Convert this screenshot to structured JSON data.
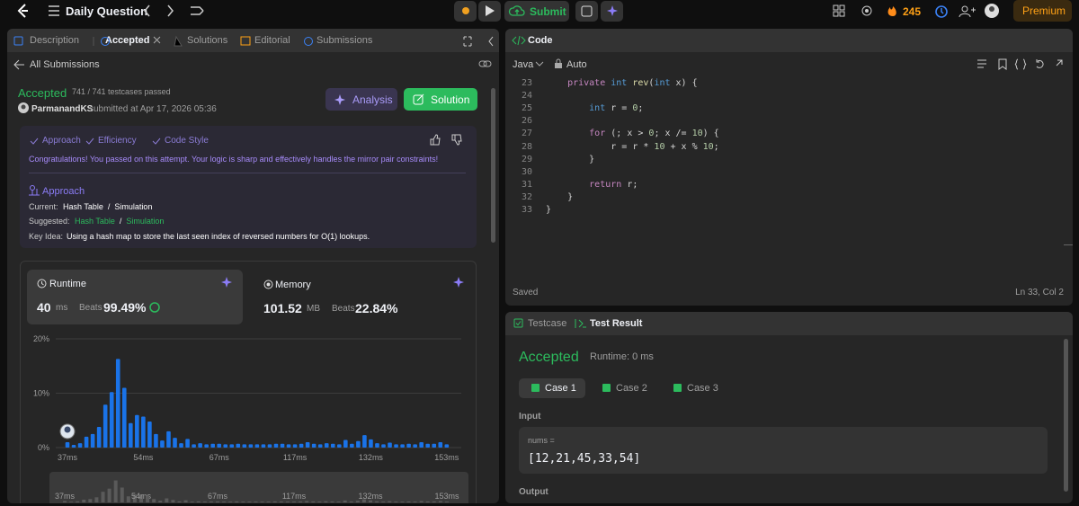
{
  "topbar": {
    "title": "Daily Question",
    "submit": "Submit",
    "streak": "245",
    "premium": "Premium"
  },
  "left_tabs": [
    "Description",
    "Accepted",
    "Solutions",
    "Editorial",
    "Submissions"
  ],
  "back_link": "All Submissions",
  "result": {
    "status": "Accepted",
    "cases": "741 / 741 testcases passed",
    "user": "ParmanandKS",
    "submitted": "submitted at Apr 17, 2026 05:36",
    "analysis": "Analysis",
    "solution": "Solution"
  },
  "feedback": {
    "tags": [
      "Approach",
      "Efficiency",
      "Code Style"
    ],
    "message": "Congratulations! You passed on this attempt. Your logic is sharp and effectively handles the mirror pair constraints!",
    "approach_title": "Approach",
    "separator": "/",
    "current_label": "Current:",
    "current": [
      "Hash Table",
      "Simulation"
    ],
    "suggested_label": "Suggested:",
    "suggested": [
      "Hash Table",
      "Simulation"
    ],
    "key_idea_label": "Key Idea:",
    "key_idea": "Using a hash map to store the last seen index of reversed numbers for O(1) lookups."
  },
  "runtime": {
    "label": "Runtime",
    "value": "40",
    "unit": "ms",
    "beats_label": "Beats",
    "beats": "99.49%"
  },
  "memory": {
    "label": "Memory",
    "value": "101.52",
    "unit": "MB",
    "beats_label": "Beats",
    "beats": "22.84%"
  },
  "runtime_chart": {
    "type": "bar",
    "color": "#1a73e8",
    "overview_color": "#5a5a5a",
    "grid": true,
    "ylim": [
      0,
      20
    ],
    "yticks": [
      {
        "value": 0,
        "label": "0%"
      },
      {
        "value": 10,
        "label": "10%"
      },
      {
        "value": 20,
        "label": "20%"
      }
    ],
    "categories": [
      "37ms",
      null,
      null,
      null,
      null,
      null,
      null,
      null,
      null,
      null,
      null,
      null,
      "54ms",
      null,
      null,
      null,
      null,
      null,
      null,
      null,
      null,
      null,
      null,
      null,
      "67ms",
      null,
      null,
      null,
      null,
      null,
      null,
      null,
      null,
      null,
      null,
      null,
      "117ms",
      null,
      null,
      null,
      null,
      null,
      null,
      null,
      null,
      null,
      null,
      null,
      "132ms",
      null,
      null,
      null,
      null,
      null,
      null,
      null,
      null,
      null,
      null,
      null,
      "153ms"
    ],
    "values": [
      1.0,
      0.5,
      0.8,
      2.0,
      2.5,
      3.8,
      7.9,
      10.2,
      16.3,
      11.0,
      4.5,
      6.0,
      5.7,
      4.8,
      2.5,
      1.3,
      3.0,
      1.8,
      0.8,
      1.6,
      0.6,
      0.8,
      0.6,
      0.7,
      0.7,
      0.6,
      0.6,
      0.7,
      0.6,
      0.6,
      0.6,
      0.6,
      0.6,
      0.7,
      0.7,
      0.6,
      0.6,
      0.7,
      1.0,
      0.7,
      0.6,
      0.8,
      0.7,
      0.6,
      1.4,
      0.7,
      1.2,
      2.3,
      1.5,
      0.8,
      0.6,
      0.9,
      0.6,
      0.6,
      0.7,
      0.6,
      1.0,
      0.7,
      0.7,
      1.0,
      0.6
    ]
  },
  "code": {
    "title": "Code",
    "language": "Java",
    "mode": "Auto",
    "line_numbers": [
      23,
      24,
      25,
      26,
      27,
      28,
      29,
      30,
      31,
      32,
      33
    ],
    "lines": [
      [
        {
          "text": "    private",
          "color": "#c586c0"
        },
        {
          "text": " int",
          "color": "#569cd6"
        },
        {
          "text": " rev",
          "color": "#dcdcaa"
        },
        {
          "text": "(",
          "color": "#d4d4d4"
        },
        {
          "text": "int",
          "color": "#569cd6"
        },
        {
          "text": " x) {",
          "color": "#d4d4d4"
        }
      ],
      [],
      [
        {
          "text": "        int",
          "color": "#569cd6"
        },
        {
          "text": " r = ",
          "color": "#d4d4d4"
        },
        {
          "text": "0",
          "color": "#b5cea8"
        },
        {
          "text": ";",
          "color": "#d4d4d4"
        }
      ],
      [],
      [
        {
          "text": "        for",
          "color": "#c586c0"
        },
        {
          "text": " (; x > ",
          "color": "#d4d4d4"
        },
        {
          "text": "0",
          "color": "#b5cea8"
        },
        {
          "text": "; x /= ",
          "color": "#d4d4d4"
        },
        {
          "text": "10",
          "color": "#b5cea8"
        },
        {
          "text": ") {",
          "color": "#d4d4d4"
        }
      ],
      [
        {
          "text": "            r = r * ",
          "color": "#d4d4d4"
        },
        {
          "text": "10",
          "color": "#b5cea8"
        },
        {
          "text": " + x % ",
          "color": "#d4d4d4"
        },
        {
          "text": "10",
          "color": "#b5cea8"
        },
        {
          "text": ";",
          "color": "#d4d4d4"
        }
      ],
      [
        {
          "text": "        }",
          "color": "#d4d4d4"
        }
      ],
      [],
      [
        {
          "text": "        return",
          "color": "#c586c0"
        },
        {
          "text": " r;",
          "color": "#d4d4d4"
        }
      ],
      [
        {
          "text": "    }",
          "color": "#d4d4d4"
        }
      ],
      [
        {
          "text": "}",
          "color": "#d4d4d4"
        }
      ]
    ],
    "status": "Saved",
    "cursor": "Ln 33, Col 2"
  },
  "test": {
    "tabs": [
      "Testcase",
      "Test Result"
    ],
    "status": "Accepted",
    "runtime": "Runtime: 0 ms",
    "cases": [
      "Case 1",
      "Case 2",
      "Case 3"
    ],
    "input_label": "Input",
    "var_name": "nums =",
    "var_value": "[12,21,45,33,54]",
    "output_label": "Output"
  }
}
